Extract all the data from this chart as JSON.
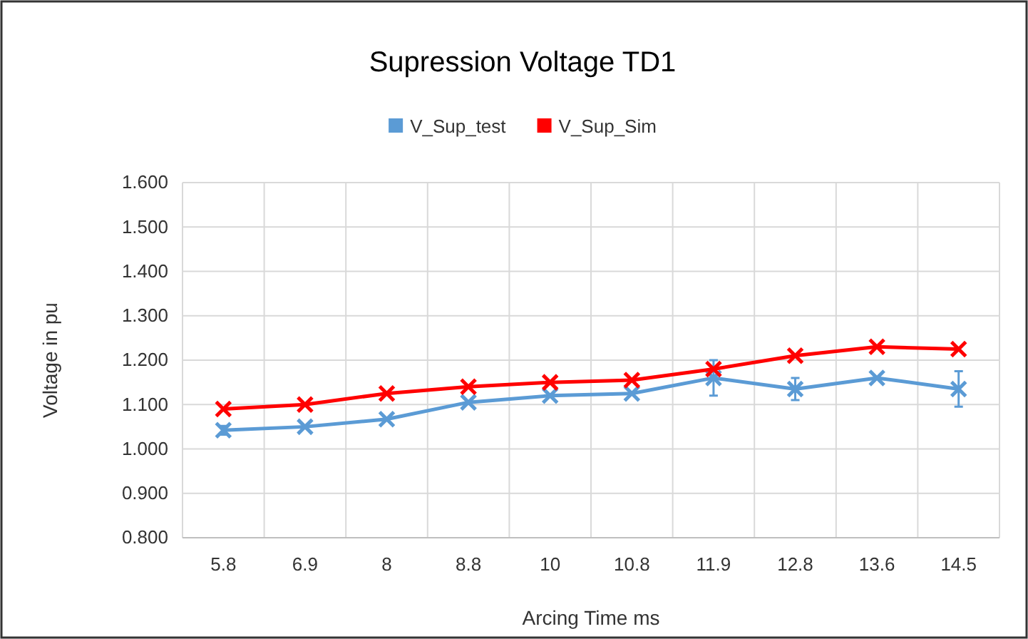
{
  "chart_data": {
    "type": "line",
    "title": "Supression Voltage TD1",
    "xlabel": "Arcing Time ms",
    "ylabel": "Voltage in pu",
    "categories": [
      "5.8",
      "6.9",
      "8",
      "8.8",
      "10",
      "10.8",
      "11.9",
      "12.8",
      "13.6",
      "14.5"
    ],
    "series": [
      {
        "name": "V_Sup_test",
        "color": "#5b9bd5",
        "values": [
          1.042,
          1.05,
          1.067,
          1.105,
          1.12,
          1.125,
          1.16,
          1.135,
          1.16,
          1.135
        ],
        "errors": [
          0.01,
          null,
          null,
          null,
          null,
          null,
          0.04,
          0.025,
          null,
          0.04
        ]
      },
      {
        "name": "V_Sup_Sim",
        "color": "#ff0000",
        "values": [
          1.09,
          1.1,
          1.125,
          1.14,
          1.15,
          1.155,
          1.18,
          1.21,
          1.23,
          1.225
        ]
      }
    ],
    "ylim": [
      0.8,
      1.6
    ],
    "yticks": [
      {
        "value": 0.8,
        "label": "0.800"
      },
      {
        "value": 0.9,
        "label": "0.900"
      },
      {
        "value": 1.0,
        "label": "1.000"
      },
      {
        "value": 1.1,
        "label": "1.100"
      },
      {
        "value": 1.2,
        "label": "1.200"
      },
      {
        "value": 1.3,
        "label": "1.300"
      },
      {
        "value": 1.4,
        "label": "1.400"
      },
      {
        "value": 1.5,
        "label": "1.500"
      },
      {
        "value": 1.6,
        "label": "1.600"
      }
    ],
    "grid": true,
    "legend": "top",
    "marker": "cross",
    "line_style": "solid"
  }
}
